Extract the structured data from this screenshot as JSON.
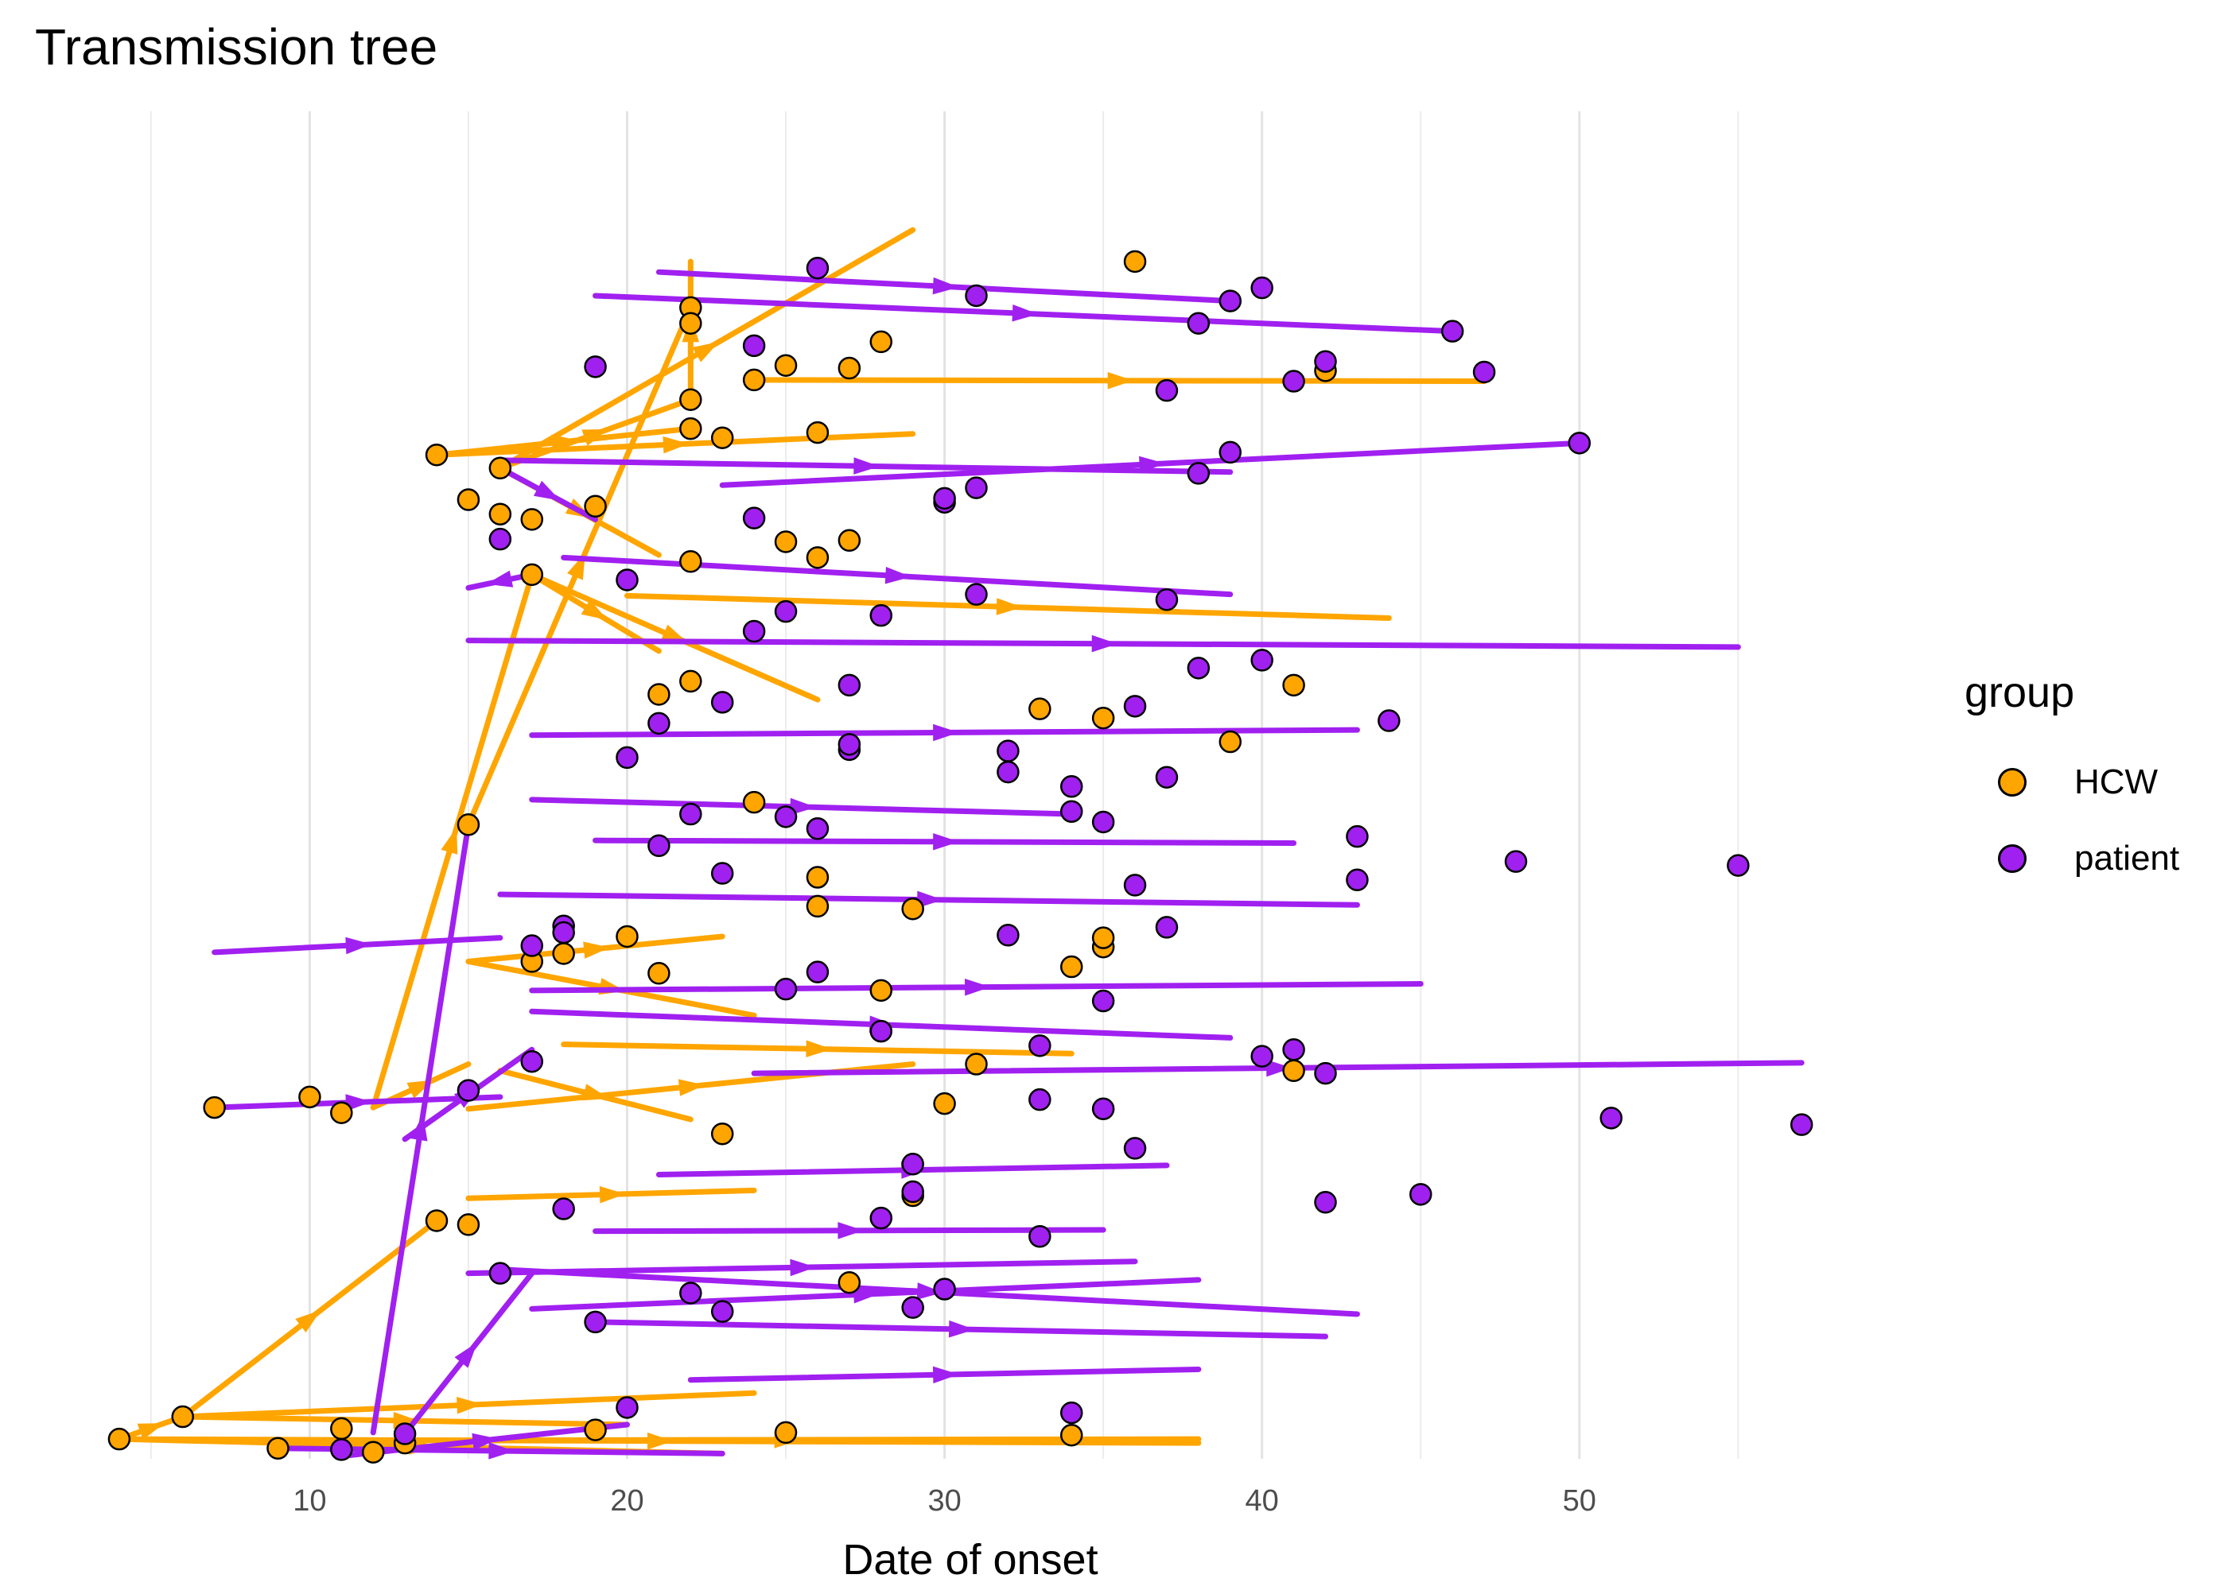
{
  "chart_data": {
    "type": "scatter",
    "title": "Transmission tree",
    "xlabel": "Date of onset",
    "ylabel": "",
    "xlim": [
      3,
      59
    ],
    "xticks": [
      10,
      20,
      30,
      40,
      50
    ],
    "grid": true,
    "legend": {
      "title": "group",
      "position": "right",
      "entries": [
        {
          "name": "HCW",
          "color": "#FFA500"
        },
        {
          "name": "patient",
          "color": "#A020F0"
        }
      ]
    },
    "series": [
      {
        "name": "HCW",
        "color": "#FFA500",
        "x": [
          4,
          6,
          7,
          9,
          10,
          11,
          12,
          14,
          14,
          15,
          15,
          16,
          17,
          17,
          19,
          21,
          22,
          22,
          22,
          22,
          23,
          24,
          25,
          25,
          26,
          26,
          26,
          27,
          27,
          28,
          29,
          30,
          31,
          34,
          34,
          35,
          35,
          35,
          36,
          39,
          41,
          41,
          42,
          15,
          17,
          16,
          19,
          22,
          26,
          29,
          23,
          20,
          11,
          13,
          25,
          27,
          22,
          24,
          28,
          21,
          18,
          33
        ],
        "y": [
          1.5,
          3.2,
          26.7,
          0.8,
          27.5,
          26.3,
          0.5,
          18.1,
          76.3,
          17.8,
          48.2,
          75.3,
          67.2,
          37.8,
          2.2,
          36.9,
          87.5,
          86.3,
          80.5,
          59.1,
          77.6,
          82.0,
          69.7,
          83.1,
          68.5,
          44.2,
          42.0,
          82.9,
          13.4,
          35.6,
          41.8,
          27.0,
          30.0,
          1.8,
          37.4,
          38.9,
          56.3,
          39.6,
          91.0,
          54.5,
          58.8,
          29.5,
          82.7,
          72.9,
          71.4,
          71.8,
          72.4,
          68.2,
          78.0,
          20.0,
          24.7,
          39.7,
          2.3,
          1.2,
          2.0,
          69.8,
          78.3,
          49.9,
          84.9,
          58.1,
          38.4,
          57.0
        ]
      },
      {
        "name": "patient",
        "color": "#A020F0",
        "x": [
          11,
          13,
          15,
          16,
          17,
          18,
          19,
          20,
          21,
          22,
          23,
          24,
          25,
          26,
          27,
          28,
          29,
          30,
          31,
          32,
          33,
          34,
          35,
          36,
          37,
          38,
          39,
          40,
          41,
          42,
          43,
          44,
          45,
          46,
          47,
          48,
          50,
          51,
          55,
          57,
          16,
          18,
          20,
          22,
          24,
          26,
          28,
          30,
          32,
          34,
          36,
          38,
          40,
          42,
          19,
          21,
          23,
          25,
          27,
          29,
          31,
          33,
          35,
          37,
          39,
          41,
          43,
          17,
          27,
          31,
          37,
          26,
          30,
          34,
          38,
          24,
          28,
          32,
          36,
          20,
          25,
          29,
          33,
          37,
          42,
          18,
          23,
          35,
          40
        ],
        "y": [
          0.7,
          1.9,
          28.0,
          14.1,
          39.0,
          19.0,
          10.4,
          3.9,
          55.9,
          12.6,
          57.5,
          84.6,
          48.8,
          90.5,
          53.9,
          64.1,
          20.3,
          72.7,
          88.4,
          52.2,
          16.9,
          49.2,
          34.8,
          23.6,
          81.2,
          60.1,
          76.5,
          30.6,
          81.9,
          19.5,
          47.3,
          56.1,
          20.1,
          85.7,
          82.6,
          45.4,
          77.2,
          25.9,
          45.1,
          25.4,
          69.9,
          40.5,
          66.8,
          49.0,
          62.9,
          37.0,
          32.5,
          73.0,
          53.8,
          51.1,
          43.6,
          86.3,
          60.7,
          29.3,
          83.0,
          46.6,
          44.5,
          35.7,
          58.8,
          11.5,
          73.8,
          31.4,
          48.4,
          65.3,
          88.0,
          31.1,
          44.0,
          30.2,
          54.3,
          65.7,
          40.4,
          47.9,
          12.9,
          3.5,
          74.9,
          71.5,
          18.3,
          39.8,
          57.2,
          53.3,
          64.4,
          22.4,
          27.3,
          51.8,
          83.4,
          40.0,
          11.2,
          26.6,
          89.0
        ]
      }
    ],
    "edges": [
      {
        "from": [
          4,
          1.5
        ],
        "to": [
          6,
          3.2
        ],
        "group": "HCW"
      },
      {
        "from": [
          6,
          3.2
        ],
        "to": [
          14,
          18.1
        ],
        "group": "HCW"
      },
      {
        "from": [
          6,
          3.2
        ],
        "to": [
          24,
          5.0
        ],
        "group": "HCW"
      },
      {
        "from": [
          6,
          3.2
        ],
        "to": [
          20,
          2.6
        ],
        "group": "HCW"
      },
      {
        "from": [
          4,
          1.5
        ],
        "to": [
          38,
          1.2
        ],
        "group": "HCW"
      },
      {
        "from": [
          4,
          1.5
        ],
        "to": [
          23,
          0.4
        ],
        "group": "HCW"
      },
      {
        "from": [
          12,
          26.7
        ],
        "to": [
          17,
          67.2
        ],
        "group": "HCW"
      },
      {
        "from": [
          12,
          26.7
        ],
        "to": [
          15,
          30.0
        ],
        "group": "HCW"
      },
      {
        "from": [
          7,
          26.7
        ],
        "to": [
          16,
          27.5
        ],
        "group": "patient"
      },
      {
        "from": [
          12,
          2.0
        ],
        "to": [
          15,
          48.2
        ],
        "group": "patient"
      },
      {
        "from": [
          15,
          48.2
        ],
        "to": [
          22,
          87.5
        ],
        "group": "HCW"
      },
      {
        "from": [
          16,
          75.3
        ],
        "to": [
          22,
          80.5
        ],
        "group": "HCW"
      },
      {
        "from": [
          16,
          75.3
        ],
        "to": [
          29,
          93.4
        ],
        "group": "HCW"
      },
      {
        "from": [
          16,
          75.3
        ],
        "to": [
          21,
          68.7
        ],
        "group": "HCW"
      },
      {
        "from": [
          16,
          75.3
        ],
        "to": [
          19,
          71.4
        ],
        "group": "patient"
      },
      {
        "from": [
          22,
          80.5
        ],
        "to": [
          22,
          91.0
        ],
        "group": "HCW"
      },
      {
        "from": [
          17,
          67.2
        ],
        "to": [
          26,
          57.7
        ],
        "group": "HCW"
      },
      {
        "from": [
          17,
          67.2
        ],
        "to": [
          21,
          61.4
        ],
        "group": "HCW"
      },
      {
        "from": [
          17,
          67.2
        ],
        "to": [
          15,
          66.2
        ],
        "group": "patient"
      },
      {
        "from": [
          15,
          37.8
        ],
        "to": [
          23,
          39.7
        ],
        "group": "HCW"
      },
      {
        "from": [
          15,
          37.8
        ],
        "to": [
          24,
          33.7
        ],
        "group": "HCW"
      },
      {
        "from": [
          14,
          76.3
        ],
        "to": [
          29,
          77.9
        ],
        "group": "HCW"
      },
      {
        "from": [
          16,
          75.9
        ],
        "to": [
          39,
          75.0
        ],
        "group": "patient"
      },
      {
        "from": [
          19,
          88.4
        ],
        "to": [
          46,
          85.7
        ],
        "group": "patient"
      },
      {
        "from": [
          21,
          90.2
        ],
        "to": [
          39,
          88.0
        ],
        "group": "patient"
      },
      {
        "from": [
          24,
          82.0
        ],
        "to": [
          47,
          81.9
        ],
        "group": "HCW"
      },
      {
        "from": [
          23,
          74.0
        ],
        "to": [
          50,
          77.2
        ],
        "group": "patient"
      },
      {
        "from": [
          18,
          68.5
        ],
        "to": [
          39,
          65.7
        ],
        "group": "patient"
      },
      {
        "from": [
          20,
          65.6
        ],
        "to": [
          44,
          63.9
        ],
        "group": "HCW"
      },
      {
        "from": [
          15,
          62.2
        ],
        "to": [
          55,
          61.7
        ],
        "group": "patient"
      },
      {
        "from": [
          17,
          55.0
        ],
        "to": [
          43,
          55.4
        ],
        "group": "patient"
      },
      {
        "from": [
          17,
          50.1
        ],
        "to": [
          34,
          49.0
        ],
        "group": "patient"
      },
      {
        "from": [
          19,
          47.0
        ],
        "to": [
          41,
          46.8
        ],
        "group": "patient"
      },
      {
        "from": [
          16,
          42.9
        ],
        "to": [
          43,
          42.1
        ],
        "group": "patient"
      },
      {
        "from": [
          7,
          38.5
        ],
        "to": [
          16,
          39.6
        ],
        "group": "patient"
      },
      {
        "from": [
          17,
          35.6
        ],
        "to": [
          45,
          36.1
        ],
        "group": "patient"
      },
      {
        "from": [
          17,
          34.0
        ],
        "to": [
          39,
          32.0
        ],
        "group": "patient"
      },
      {
        "from": [
          18,
          31.5
        ],
        "to": [
          34,
          30.8
        ],
        "group": "HCW"
      },
      {
        "from": [
          16,
          29.5
        ],
        "to": [
          22,
          25.8
        ],
        "group": "HCW"
      },
      {
        "from": [
          15,
          26.6
        ],
        "to": [
          29,
          30.0
        ],
        "group": "HCW"
      },
      {
        "from": [
          24,
          29.3
        ],
        "to": [
          57,
          30.1
        ],
        "group": "patient"
      },
      {
        "from": [
          21,
          21.6
        ],
        "to": [
          37,
          22.3
        ],
        "group": "patient"
      },
      {
        "from": [
          19,
          17.3
        ],
        "to": [
          35,
          17.4
        ],
        "group": "patient"
      },
      {
        "from": [
          15,
          14.1
        ],
        "to": [
          36,
          15.0
        ],
        "group": "patient"
      },
      {
        "from": [
          16,
          14.4
        ],
        "to": [
          43,
          11.0
        ],
        "group": "patient"
      },
      {
        "from": [
          17,
          11.4
        ],
        "to": [
          38,
          13.6
        ],
        "group": "patient"
      },
      {
        "from": [
          19,
          10.4
        ],
        "to": [
          42,
          9.3
        ],
        "group": "patient"
      },
      {
        "from": [
          22,
          6.0
        ],
        "to": [
          38,
          6.8
        ],
        "group": "patient"
      },
      {
        "from": [
          12,
          1.4
        ],
        "to": [
          38,
          1.5
        ],
        "group": "HCW"
      },
      {
        "from": [
          9,
          0.8
        ],
        "to": [
          23,
          0.4
        ],
        "group": "patient"
      },
      {
        "from": [
          11,
          0.2
        ],
        "to": [
          20,
          2.6
        ],
        "group": "patient"
      },
      {
        "from": [
          13,
          1.9
        ],
        "to": [
          17,
          14.1
        ],
        "group": "patient"
      },
      {
        "from": [
          15,
          19.8
        ],
        "to": [
          24,
          20.4
        ],
        "group": "HCW"
      },
      {
        "from": [
          13,
          24.3
        ],
        "to": [
          17,
          31.1
        ],
        "group": "patient"
      },
      {
        "from": [
          14,
          76.3
        ],
        "to": [
          22,
          78.3
        ],
        "group": "HCW"
      }
    ]
  }
}
